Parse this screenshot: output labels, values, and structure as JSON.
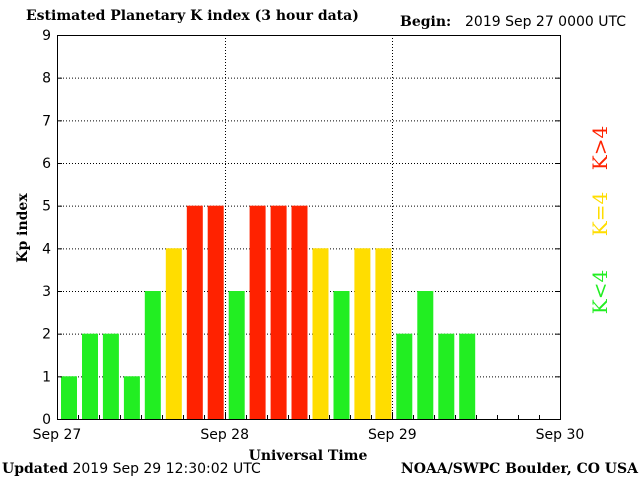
{
  "header": {
    "title": "Estimated Planetary K index (3 hour data)",
    "begin_label": "Begin:",
    "begin_value": "2019 Sep 27 0000 UTC"
  },
  "footer": {
    "updated_label": "Updated",
    "updated_value": "2019 Sep 29 12:30:02 UTC",
    "credit": "NOAA/SWPC Boulder, CO USA"
  },
  "legend": [
    {
      "label": "K<4",
      "color": "#22ee22"
    },
    {
      "label": "K=4",
      "color": "#ffdd00"
    },
    {
      "label": "K>4",
      "color": "#ff2200"
    }
  ],
  "chart_data": {
    "type": "bar",
    "title": "Estimated Planetary K index (3 hour data)",
    "xlabel": "Universal Time",
    "ylabel": "Kp index",
    "ylim": [
      0,
      9
    ],
    "yticks": [
      "0",
      "1",
      "2",
      "3",
      "4",
      "5",
      "6",
      "7",
      "8",
      "9"
    ],
    "xticks": [
      "Sep 27",
      "Sep 28",
      "Sep 29",
      "Sep 30"
    ],
    "grid": true,
    "bins_per_day": 8,
    "values": [
      1,
      2,
      2,
      1,
      3,
      4,
      5,
      5,
      3,
      5,
      5,
      5,
      4,
      3,
      4,
      4,
      2,
      3,
      2,
      2
    ],
    "colors": {
      "below": "#22ee22",
      "equal": "#ffdd00",
      "above": "#ff2200"
    }
  }
}
